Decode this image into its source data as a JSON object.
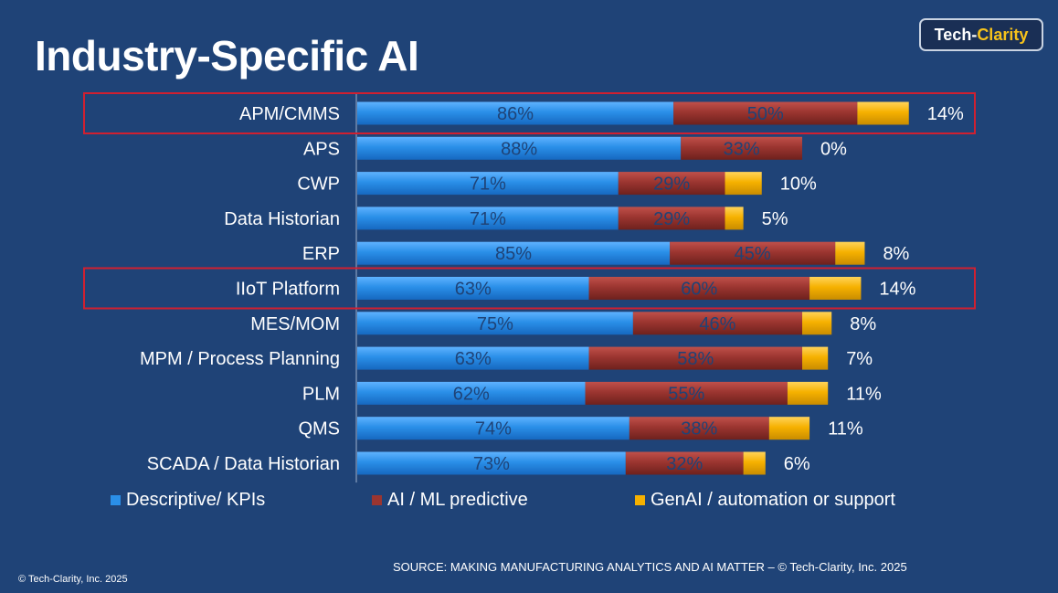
{
  "title": "Industry-Specific AI",
  "logo": {
    "part1": "Tech-",
    "part2": "Clarity"
  },
  "source": "SOURCE: MAKING MANUFACTURING ANALYTICS AND AI MATTER – © Tech-Clarity, Inc. 2025",
  "copyright": "© Tech-Clarity, Inc. 2025",
  "colors": {
    "descriptive": "#2a8fe8",
    "predictive": "#9b3530",
    "genai": "#f6b100",
    "highlight": "#d02030",
    "background": "#1f4377"
  },
  "chart_data": {
    "type": "bar",
    "orientation": "horizontal",
    "stacked": true,
    "categories": [
      "APM/CMMS",
      "APS",
      "CWP",
      "Data Historian",
      "ERP",
      "IIoT Platform",
      "MES/MOM",
      "MPM / Process Planning",
      "PLM",
      "QMS",
      "SCADA / Data Historian"
    ],
    "series": [
      {
        "name": "Descriptive/ KPIs",
        "values": [
          86,
          88,
          71,
          71,
          85,
          63,
          75,
          63,
          62,
          74,
          73
        ],
        "labels": [
          "86%",
          "88%",
          "71%",
          "71%",
          "85%",
          "63%",
          "75%",
          "63%",
          "62%",
          "74%",
          "73%"
        ]
      },
      {
        "name": "AI / ML predictive",
        "values": [
          50,
          33,
          29,
          29,
          45,
          60,
          46,
          58,
          55,
          38,
          32
        ],
        "labels": [
          "50%",
          "33%",
          "29%",
          "29%",
          "45%",
          "60%",
          "46%",
          "58%",
          "55%",
          "38%",
          "32%"
        ]
      },
      {
        "name": "GenAI / automation or support",
        "values": [
          14,
          0,
          10,
          5,
          8,
          14,
          8,
          7,
          11,
          11,
          6
        ],
        "labels": [
          "14%",
          "0%",
          "10%",
          "5%",
          "8%",
          "14%",
          "8%",
          "7%",
          "11%",
          "11%",
          "6%"
        ]
      }
    ],
    "highlighted": [
      "APM/CMMS",
      "IIoT Platform"
    ],
    "legend_position": "bottom",
    "grid": false
  }
}
